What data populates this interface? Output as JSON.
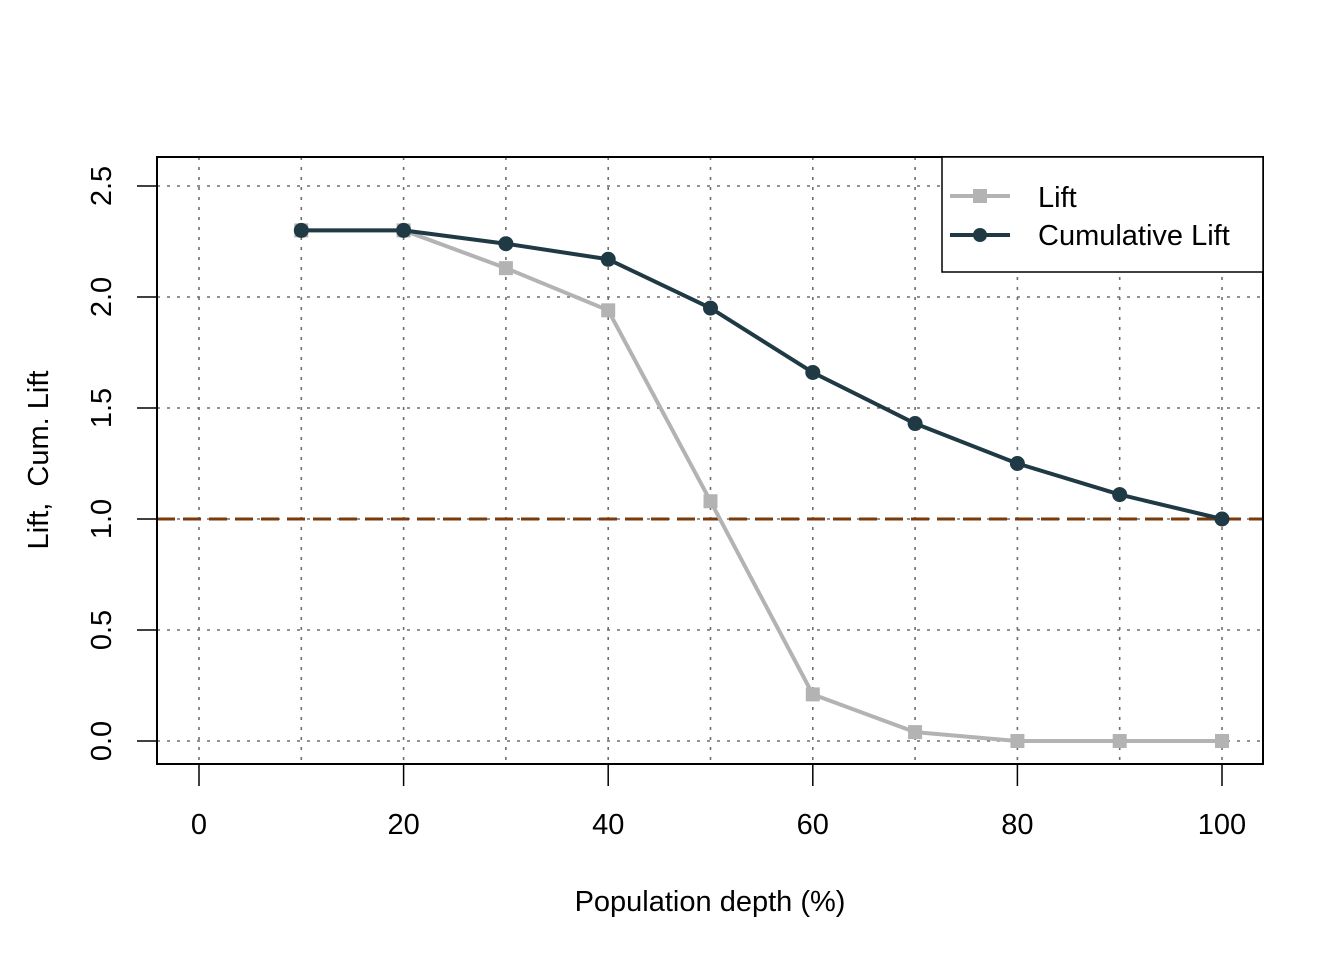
{
  "chart_data": {
    "type": "line",
    "title": "",
    "xlabel": "Population depth (%)",
    "ylabel": "Lift,  Cum. Lift",
    "xlim": [
      -4,
      104
    ],
    "ylim": [
      -0.1,
      2.63
    ],
    "xticks": [
      0,
      20,
      40,
      60,
      80,
      100
    ],
    "xtick_labels": [
      "0",
      "20",
      "40",
      "60",
      "80",
      "100"
    ],
    "yticks": [
      0.0,
      0.5,
      1.0,
      1.5,
      2.0,
      2.5
    ],
    "ytick_labels": [
      "0.0",
      "0.5",
      "1.0",
      "1.5",
      "2.0",
      "2.5"
    ],
    "grid": true,
    "grid_x": [
      0,
      10,
      20,
      30,
      40,
      50,
      60,
      70,
      80,
      90,
      100
    ],
    "grid_y": [
      0.0,
      0.5,
      1.0,
      1.5,
      2.0,
      2.5
    ],
    "x": [
      10,
      20,
      30,
      40,
      50,
      60,
      70,
      80,
      90,
      100
    ],
    "series": [
      {
        "name": "Lift",
        "values": [
          2.3,
          2.3,
          2.13,
          1.94,
          1.08,
          0.21,
          0.04,
          0.0,
          0.0,
          0.0
        ],
        "color": "#b3b3b3",
        "marker": "square"
      },
      {
        "name": "Cumulative Lift",
        "values": [
          2.3,
          2.3,
          2.24,
          2.17,
          1.95,
          1.66,
          1.43,
          1.25,
          1.11,
          1.0
        ],
        "color": "#1f3a44",
        "marker": "circle"
      }
    ],
    "reference_line": {
      "y": 1.0,
      "color": "#7a3a0a",
      "style": "dashed"
    },
    "legend": {
      "position": "top-right",
      "entries": [
        "Lift",
        "Cumulative Lift"
      ]
    }
  }
}
